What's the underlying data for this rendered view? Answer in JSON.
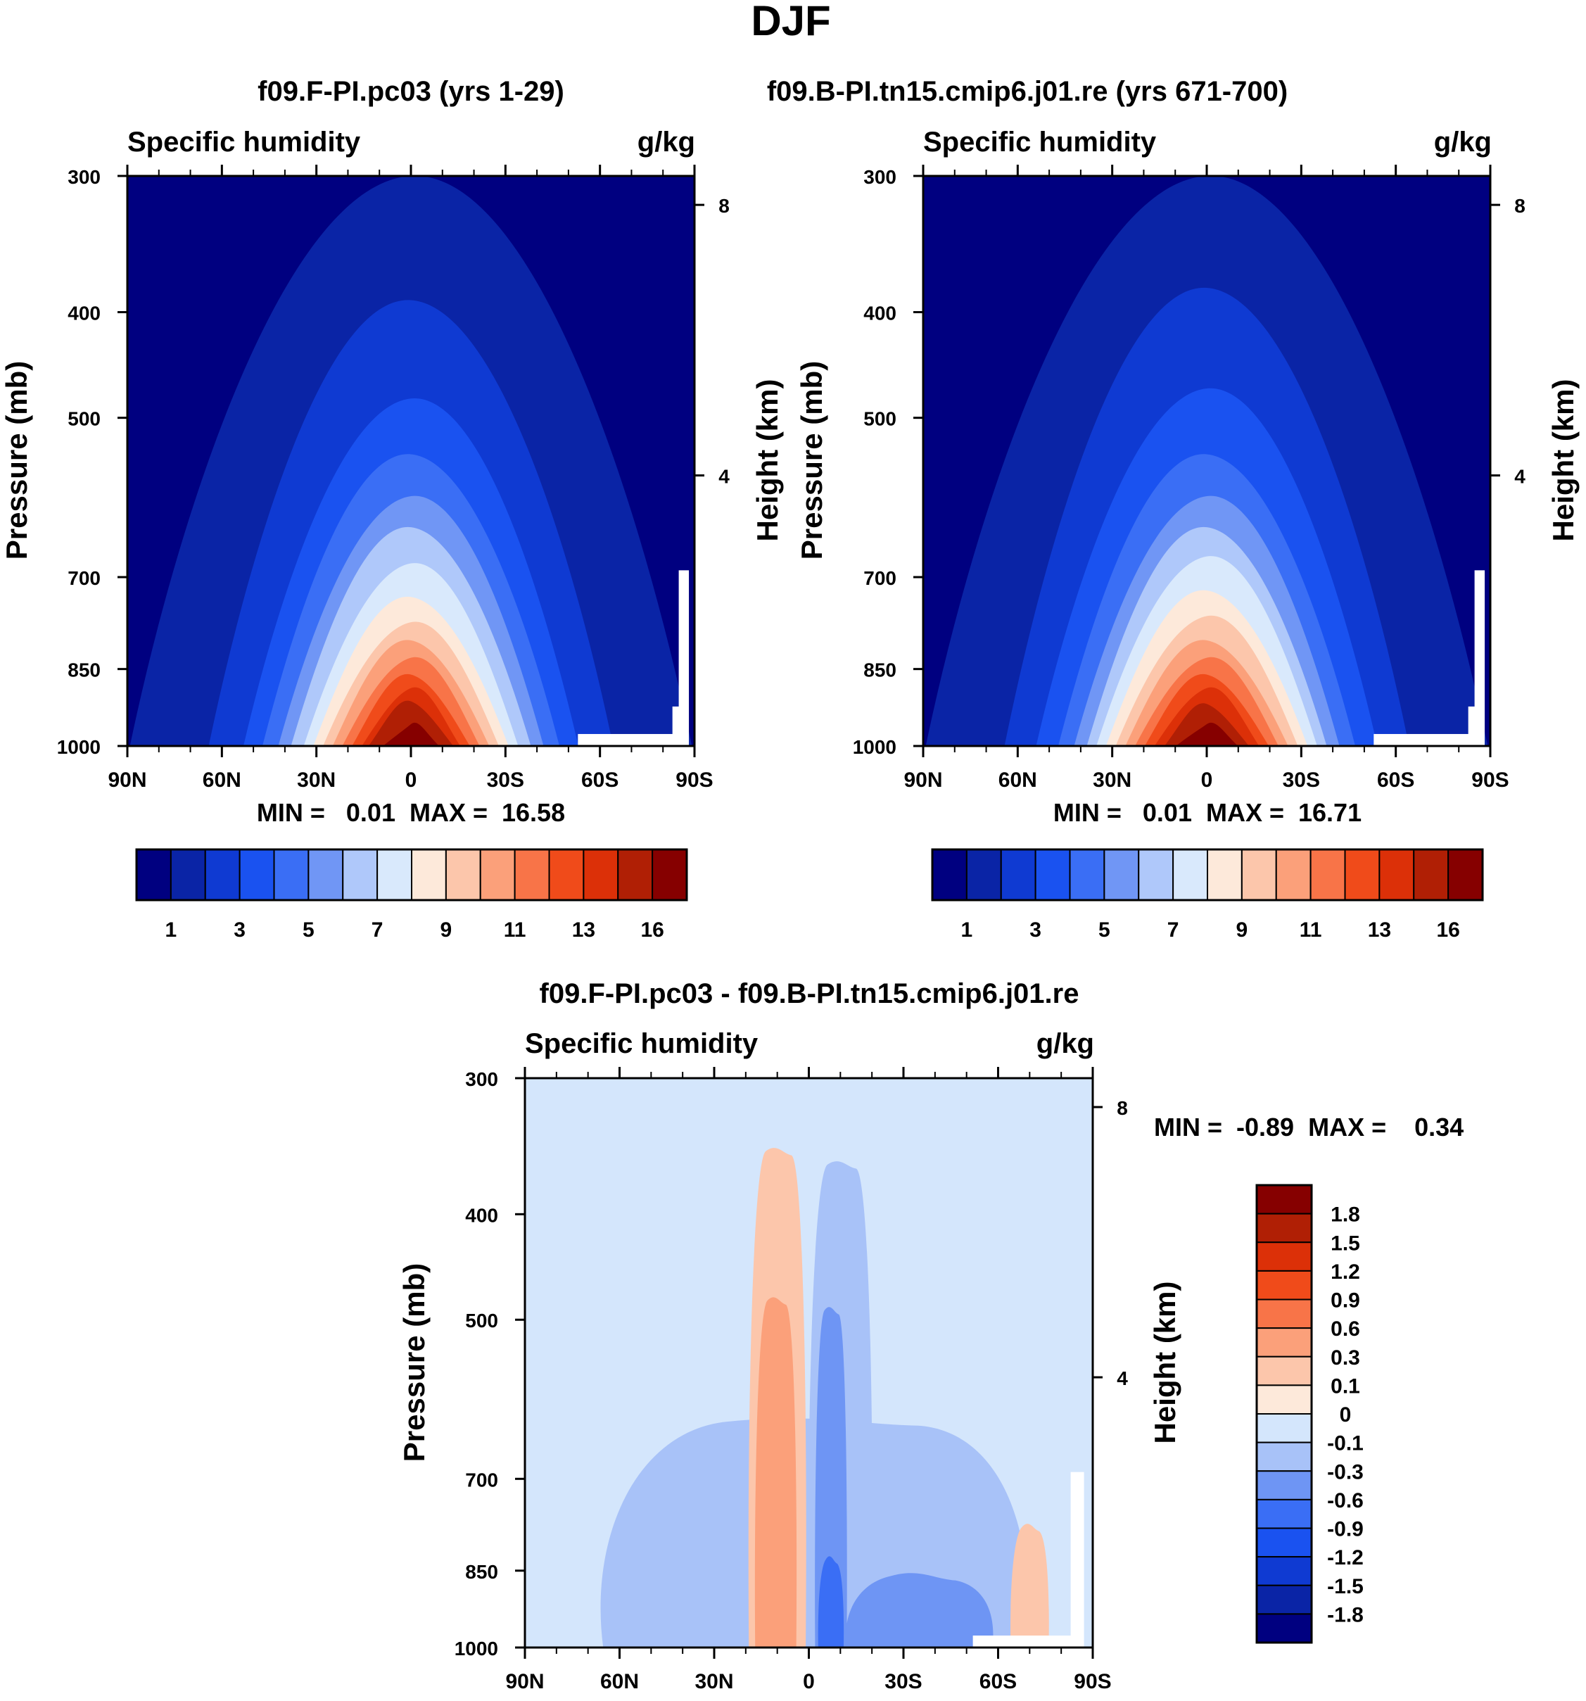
{
  "figure": {
    "title": "DJF"
  },
  "colors": {
    "abs_palette": [
      "#000080",
      "#0a24a6",
      "#0f3ad2",
      "#1a52f0",
      "#3a6ef5",
      "#7096f5",
      "#afc8fa",
      "#d9e9fc",
      "#fde9da",
      "#fcc6ab",
      "#fba07a",
      "#f87448",
      "#f04b1a",
      "#dc3008",
      "#b01f05",
      "#860000"
    ],
    "diff_palette": [
      "#000080",
      "#0a24a6",
      "#0f3ad2",
      "#1a52f0",
      "#3a6ef5",
      "#6e95f4",
      "#a8c2f8",
      "#d4e6fc",
      "#fde9da",
      "#fcc6ab",
      "#fba07a",
      "#f87448",
      "#f04b1a",
      "#dc3008",
      "#b01f05",
      "#860000"
    ],
    "missing": "#ffffff"
  },
  "panels": [
    {
      "title": "f09.F-PI.pc03 (yrs 1-29)",
      "left_string": "Specific humidity",
      "right_string": "g/kg",
      "ylabel": "Pressure (mb)",
      "y2label": "Height (km)",
      "stats": "MIN =   0.01  MAX =  16.58",
      "colorbar_labels": [
        "1",
        "3",
        "5",
        "7",
        "9",
        "11",
        "13",
        "16"
      ]
    },
    {
      "title": "f09.B-PI.tn15.cmip6.j01.re (yrs 671-700)",
      "left_string": "Specific humidity",
      "right_string": "g/kg",
      "ylabel": "Pressure (mb)",
      "y2label": "Height (km)",
      "stats": "MIN =   0.01  MAX =  16.71",
      "colorbar_labels": [
        "1",
        "3",
        "5",
        "7",
        "9",
        "11",
        "13",
        "16"
      ]
    },
    {
      "title": "f09.F-PI.pc03 - f09.B-PI.tn15.cmip6.j01.re",
      "left_string": "Specific humidity",
      "right_string": "g/kg",
      "ylabel": "Pressure (mb)",
      "y2label": "Height (km)",
      "stats": "MIN =  -0.89  MAX =    0.34",
      "colorbar_labels": [
        "1.8",
        "1.5",
        "1.2",
        "0.9",
        "0.6",
        "0.3",
        "0.1",
        "0",
        "-0.1",
        "-0.3",
        "-0.6",
        "-0.9",
        "-1.2",
        "-1.5",
        "-1.8"
      ]
    }
  ],
  "chart_data": [
    {
      "type": "heatmap",
      "title": "f09.F-PI.pc03 (yrs 1-29)",
      "variable": "Specific humidity",
      "units": "g/kg",
      "x_ticks": [
        "90N",
        "60N",
        "30N",
        "0",
        "30S",
        "60S",
        "90S"
      ],
      "x_values": [
        90,
        60,
        30,
        0,
        -30,
        -60,
        -90
      ],
      "xlim": [
        90,
        -90
      ],
      "y_ticks": [
        300,
        400,
        500,
        700,
        850,
        1000
      ],
      "ylim": [
        1000,
        300
      ],
      "y2_ticks": [
        8,
        4
      ],
      "contour_levels": [
        1,
        2,
        3,
        4,
        5,
        6,
        7,
        8,
        9,
        10,
        11,
        12,
        13,
        14,
        16
      ],
      "peak_value": 16.58,
      "peak_lat": 0,
      "top_pressure_by_level": [
        300,
        390,
        480,
        540,
        590,
        630,
        680,
        730,
        770,
        800,
        830,
        860,
        885,
        910,
        955
      ],
      "base_half_width_lat": [
        85,
        60,
        49,
        43,
        38,
        34,
        30,
        27,
        24,
        21,
        18,
        15,
        12,
        10,
        6
      ]
    },
    {
      "type": "heatmap",
      "title": "f09.B-PI.tn15.cmip6.j01.re (yrs 671-700)",
      "variable": "Specific humidity",
      "units": "g/kg",
      "x_ticks": [
        "90N",
        "60N",
        "30N",
        "0",
        "30S",
        "60S",
        "90S"
      ],
      "x_values": [
        90,
        60,
        30,
        0,
        -30,
        -60,
        -90
      ],
      "xlim": [
        90,
        -90
      ],
      "y_ticks": [
        300,
        400,
        500,
        700,
        850,
        1000
      ],
      "ylim": [
        1000,
        300
      ],
      "y2_ticks": [
        8,
        4
      ],
      "contour_levels": [
        1,
        2,
        3,
        4,
        5,
        6,
        7,
        8,
        9,
        10,
        11,
        12,
        13,
        14,
        16
      ],
      "peak_value": 16.71,
      "peak_lat": 0,
      "top_pressure_by_level": [
        300,
        380,
        470,
        540,
        590,
        630,
        670,
        720,
        760,
        800,
        830,
        860,
        885,
        915,
        955
      ],
      "base_half_width_lat": [
        85,
        60,
        50,
        43,
        38,
        34,
        31,
        28,
        25,
        22,
        19,
        16,
        13,
        10,
        7
      ]
    },
    {
      "type": "heatmap",
      "title": "f09.F-PI.pc03 - f09.B-PI.tn15.cmip6.j01.re",
      "variable": "Specific humidity",
      "units": "g/kg",
      "x_ticks": [
        "90N",
        "60N",
        "30N",
        "0",
        "30S",
        "60S",
        "90S"
      ],
      "x_values": [
        90,
        60,
        30,
        0,
        -30,
        -60,
        -90
      ],
      "xlim": [
        90,
        -90
      ],
      "y_ticks": [
        300,
        400,
        500,
        700,
        850,
        1000
      ],
      "ylim": [
        1000,
        300
      ],
      "y2_ticks": [
        8,
        4
      ],
      "contour_levels": [
        -1.8,
        -1.5,
        -1.2,
        -0.9,
        -0.6,
        -0.3,
        -0.1,
        0,
        0.1,
        0.3,
        0.6,
        0.9,
        1.2,
        1.5,
        1.8
      ],
      "min": -0.89,
      "max": 0.34,
      "features": [
        {
          "sign": "negative",
          "level": -0.1,
          "lat_range": [
            65,
            -68
          ],
          "top_pressure": 620
        },
        {
          "sign": "positive",
          "level": 0.1,
          "lat_range": [
            19,
            1
          ],
          "top_pressure": 350
        },
        {
          "sign": "positive",
          "level": 0.3,
          "lat_range": [
            17,
            4
          ],
          "top_pressure": 480
        },
        {
          "sign": "negative",
          "level": -0.1,
          "lat_range": [
            0,
            -20
          ],
          "top_pressure": 360
        },
        {
          "sign": "negative",
          "level": -0.3,
          "lat_range": [
            -2,
            -12
          ],
          "top_pressure": 490
        },
        {
          "sign": "negative",
          "level": -0.3,
          "lat_range": [
            -12,
            -58
          ],
          "top_pressure": 860
        },
        {
          "sign": "negative",
          "level": -0.6,
          "lat_range": [
            -3,
            -11
          ],
          "top_pressure": 830
        },
        {
          "sign": "positive",
          "level": 0.1,
          "lat_range": [
            -64,
            -76
          ],
          "top_pressure": 775
        }
      ]
    }
  ]
}
